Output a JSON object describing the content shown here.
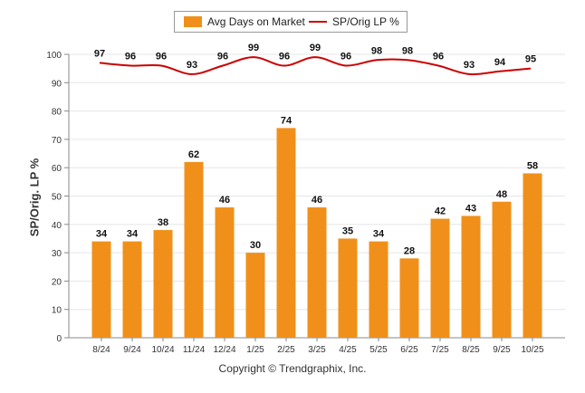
{
  "chart_data": {
    "type": "bar",
    "categories": [
      "8/24",
      "9/24",
      "10/24",
      "11/24",
      "12/24",
      "1/25",
      "2/25",
      "3/25",
      "4/25",
      "5/25",
      "6/25",
      "7/25",
      "8/25",
      "9/25",
      "10/25"
    ],
    "series": [
      {
        "name": "Avg Days on Market",
        "type": "bar",
        "color": "#f0901a",
        "values": [
          34,
          34,
          38,
          62,
          46,
          30,
          74,
          46,
          35,
          34,
          28,
          42,
          43,
          48,
          58
        ]
      },
      {
        "name": "SP/Orig LP %",
        "type": "line",
        "color": "#cc0000",
        "values": [
          97,
          96,
          96,
          93,
          96,
          99,
          96,
          99,
          96,
          98,
          98,
          96,
          93,
          94,
          95
        ]
      }
    ],
    "ylabel": "SP/Orig. LP %",
    "xlabel": "",
    "ylim": [
      0,
      100
    ],
    "yticks": [
      0,
      10,
      20,
      30,
      40,
      50,
      60,
      70,
      80,
      90,
      100
    ],
    "legend_position": "top-center",
    "grid": true
  },
  "footer": {
    "copyright": "Copyright © Trendgraphix, Inc."
  }
}
